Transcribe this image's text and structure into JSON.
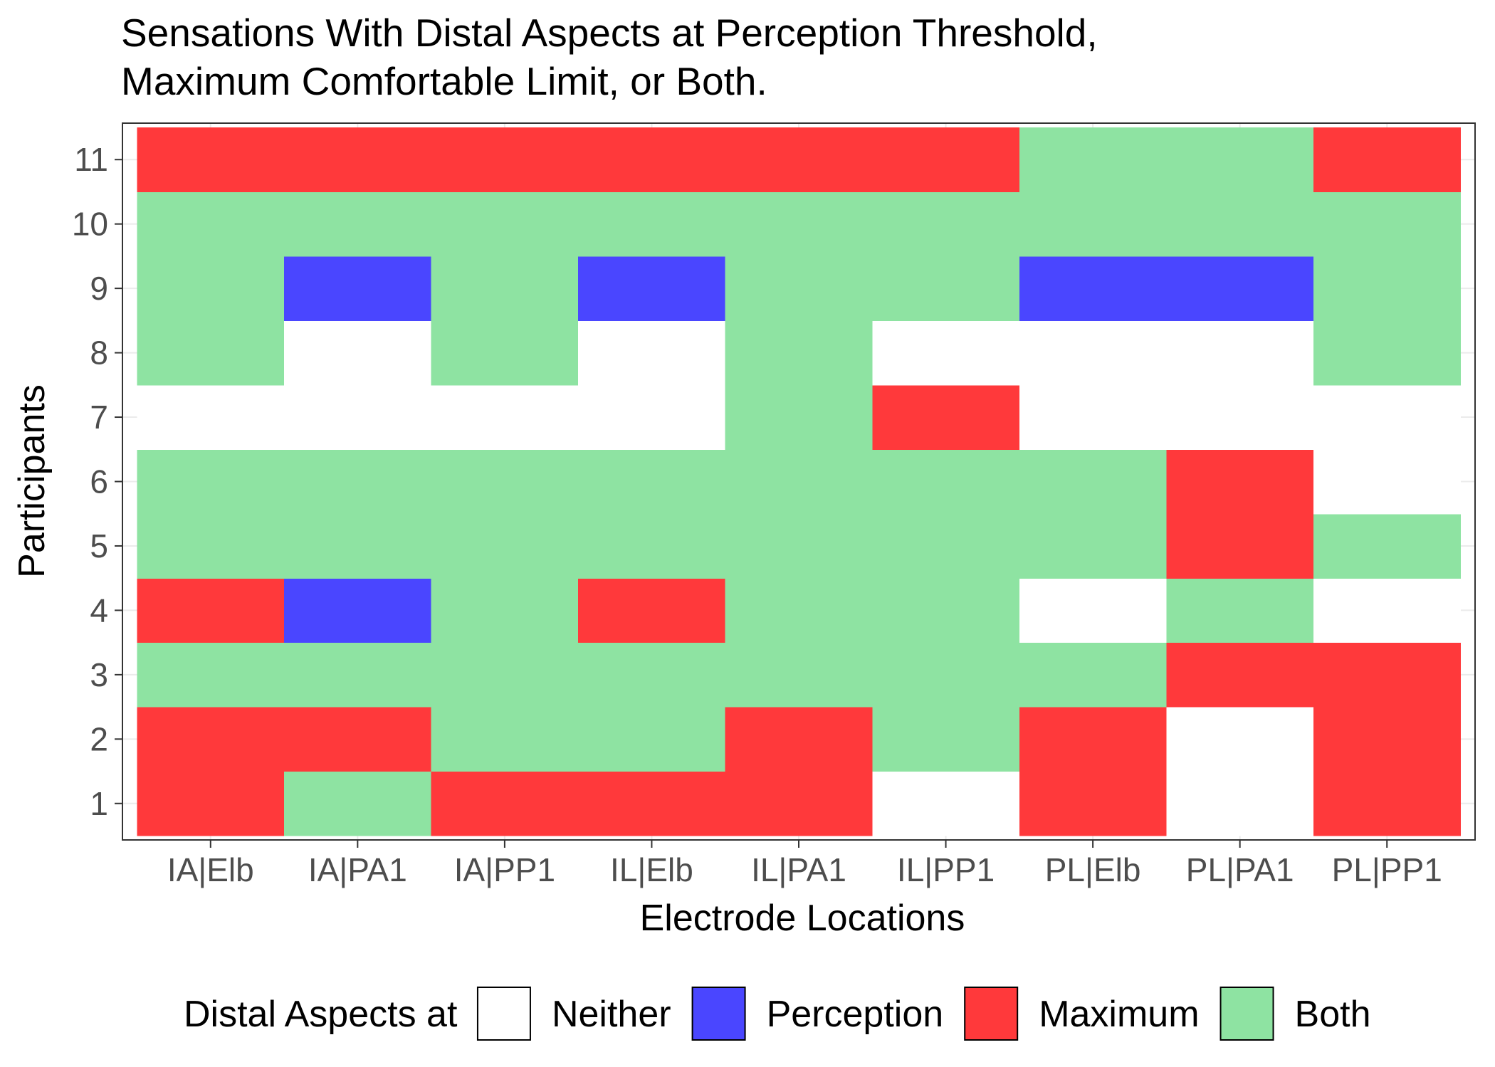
{
  "chart_data": {
    "type": "heatmap",
    "title_lines": [
      "Sensations With Distal Aspects at Perception Threshold,",
      "Maximum Comfortable Limit, or Both."
    ],
    "xlabel": "Electrode Locations",
    "ylabel": "Participants",
    "x_categories": [
      "IA|Elb",
      "IA|PA1",
      "IA|PP1",
      "IL|Elb",
      "IL|PA1",
      "IL|PP1",
      "PL|Elb",
      "PL|PA1",
      "PL|PP1"
    ],
    "y_categories": [
      "1",
      "2",
      "3",
      "4",
      "5",
      "6",
      "7",
      "8",
      "9",
      "10",
      "11"
    ],
    "legend": {
      "title": "Distal Aspects at",
      "position": "bottom",
      "levels": [
        {
          "key": "Neither",
          "label": "Neither",
          "color": "#ffffff"
        },
        {
          "key": "Perception",
          "label": "Perception",
          "color": "#4a46ff"
        },
        {
          "key": "Maximum",
          "label": "Maximum",
          "color": "#ff393b"
        },
        {
          "key": "Both",
          "label": "Both",
          "color": "#8ee3a2"
        }
      ]
    },
    "grid": true,
    "cells": {
      "11": [
        "Maximum",
        "Maximum",
        "Maximum",
        "Maximum",
        "Maximum",
        "Maximum",
        "Both",
        "Both",
        "Maximum"
      ],
      "10": [
        "Both",
        "Both",
        "Both",
        "Both",
        "Both",
        "Both",
        "Both",
        "Both",
        "Both"
      ],
      "9": [
        "Both",
        "Perception",
        "Both",
        "Perception",
        "Both",
        "Both",
        "Perception",
        "Perception",
        "Both"
      ],
      "8": [
        "Both",
        "Neither",
        "Both",
        "Neither",
        "Both",
        "Neither",
        "Neither",
        "Neither",
        "Both"
      ],
      "7": [
        "Neither",
        "Neither",
        "Neither",
        "Neither",
        "Both",
        "Maximum",
        "Neither",
        "Neither",
        "Neither"
      ],
      "6": [
        "Both",
        "Both",
        "Both",
        "Both",
        "Both",
        "Both",
        "Both",
        "Maximum",
        "Neither"
      ],
      "5": [
        "Both",
        "Both",
        "Both",
        "Both",
        "Both",
        "Both",
        "Both",
        "Maximum",
        "Both"
      ],
      "4": [
        "Maximum",
        "Perception",
        "Both",
        "Maximum",
        "Both",
        "Both",
        "Neither",
        "Both",
        "Neither"
      ],
      "3": [
        "Both",
        "Both",
        "Both",
        "Both",
        "Both",
        "Both",
        "Both",
        "Maximum",
        "Maximum"
      ],
      "2": [
        "Maximum",
        "Maximum",
        "Both",
        "Both",
        "Maximum",
        "Both",
        "Maximum",
        "Neither",
        "Maximum"
      ],
      "1": [
        "Maximum",
        "Both",
        "Maximum",
        "Maximum",
        "Maximum",
        "Neither",
        "Maximum",
        "Neither",
        "Maximum"
      ]
    }
  }
}
